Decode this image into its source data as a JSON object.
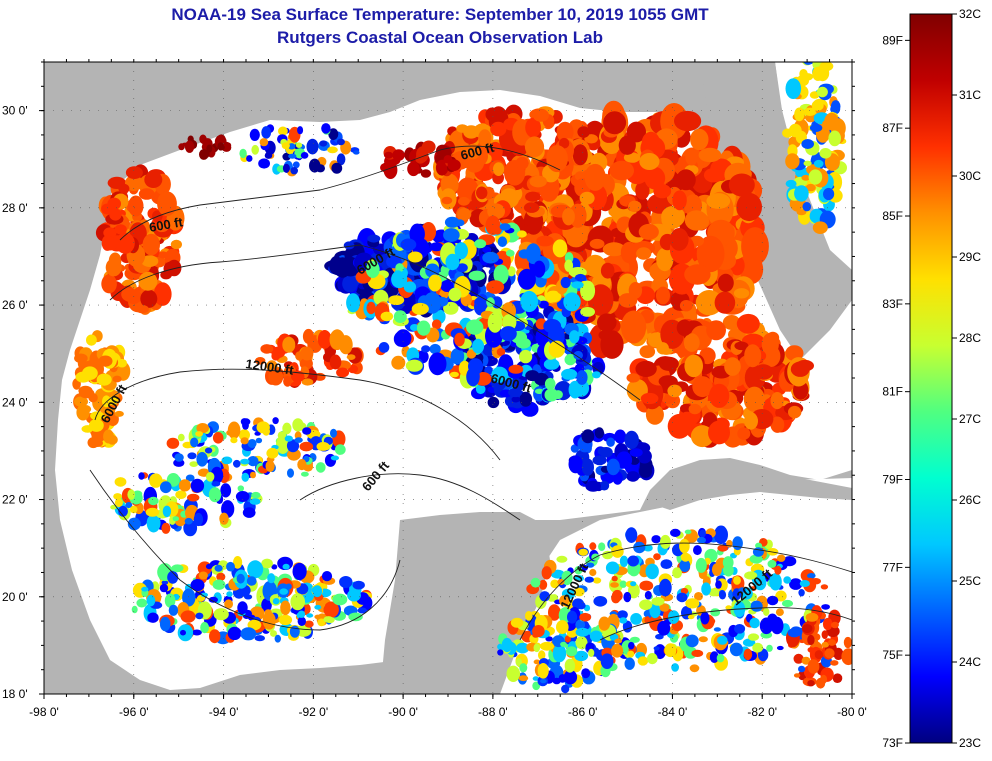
{
  "title": "NOAA-19 Sea Surface Temperature:  September 10, 2019 1055 GMT",
  "subtitle": "Rutgers Coastal Ocean Observation Lab",
  "map": {
    "lon_range": [
      -98,
      -80
    ],
    "lat_range": [
      18,
      31
    ],
    "x_ticks": [
      "-98 0'",
      "-96 0'",
      "-94 0'",
      "-92 0'",
      "-90 0'",
      "-88 0'",
      "-86 0'",
      "-84 0'",
      "-82 0'",
      "-80 0'"
    ],
    "y_ticks": [
      "30 0'",
      "28 0'",
      "26 0'",
      "24 0'",
      "22 0'",
      "20 0'",
      "18 0'"
    ],
    "contour_labels": [
      "600 ft",
      "600 ft",
      "6000 ft",
      "12000 ft",
      "6000 ft",
      "6000 ft",
      "600 ft",
      "12000 ft",
      "12000 ft"
    ],
    "colors": {
      "land": "#b4b4b4",
      "no_data": "#ffffff",
      "contour": "#222222"
    }
  },
  "colorbar": {
    "fahrenheit_labels": [
      "89F",
      "87F",
      "85F",
      "83F",
      "81F",
      "79F",
      "77F",
      "75F",
      "73F"
    ],
    "celsius_labels": [
      "32C",
      "31C",
      "30C",
      "29C",
      "28C",
      "27C",
      "26C",
      "25C",
      "24C",
      "23C"
    ],
    "range_c": [
      23,
      32
    ],
    "range_f": [
      73,
      89.6
    ],
    "stops": [
      "#000080",
      "#0000ff",
      "#0064ff",
      "#00c8ff",
      "#00ffd0",
      "#50ff80",
      "#c8ff30",
      "#ffe000",
      "#ff9000",
      "#ff3000",
      "#c00000",
      "#800000"
    ]
  }
}
